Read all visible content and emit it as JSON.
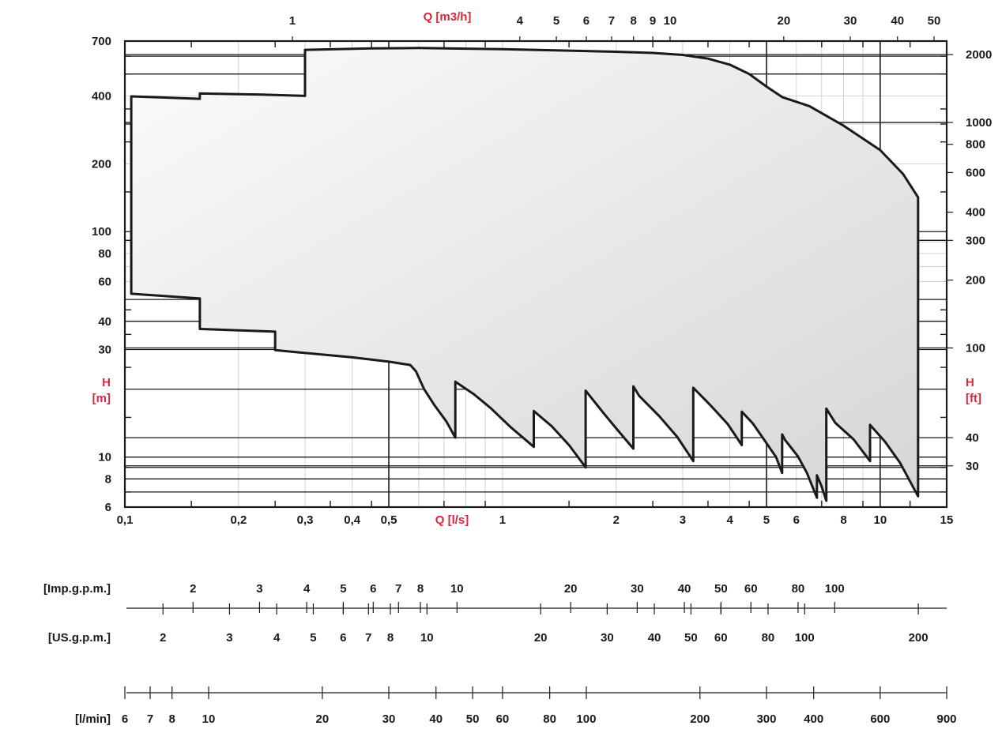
{
  "colors": {
    "axis_label": "#d9263a",
    "frame": "#1a1a1a",
    "envelope_fill_light": "#fbfbfb",
    "envelope_fill_dark": "#d6d6d6"
  },
  "chart_data": {
    "type": "area",
    "grid": true,
    "x_scale": "log",
    "y_scale": "log",
    "xlim": [
      0.1,
      15
    ],
    "ylim": [
      6,
      700
    ],
    "axis_labels": {
      "q_ls": "Q [l/s]",
      "q_m3h": "Q [m3/h]",
      "h_m_top": "H",
      "h_m_bottom": "[m]",
      "h_ft_top": "H",
      "h_ft_bottom": "[ft]"
    },
    "x_ticks_ls": [
      "0,1",
      "0,2",
      "0,3",
      "0,4",
      "0,5",
      "1",
      "2",
      "3",
      "4",
      "5",
      "6",
      "8",
      "10",
      "15"
    ],
    "x_ticks_m3h": [
      "1",
      "4",
      "5",
      "6",
      "7",
      "8",
      "9",
      "10",
      "20",
      "30",
      "40",
      "50"
    ],
    "y_ticks_m": [
      "700",
      "400",
      "200",
      "100",
      "80",
      "60",
      "40",
      "30",
      "10",
      "8",
      "6"
    ],
    "y_ticks_ft": [
      "2000",
      "1000",
      "800",
      "600",
      "400",
      "300",
      "200",
      "100",
      "40",
      "30"
    ],
    "secondary_scales": [
      {
        "label": "[Imp.g.p.m.]",
        "ticks": [
          "2",
          "3",
          "4",
          "5",
          "6",
          "7",
          "8",
          "10",
          "20",
          "30",
          "40",
          "50",
          "60",
          "80",
          "100"
        ]
      },
      {
        "label": "[US.g.p.m.]",
        "ticks": [
          "2",
          "3",
          "4",
          "5",
          "6",
          "7",
          "8",
          "10",
          "20",
          "30",
          "40",
          "50",
          "60",
          "80",
          "100",
          "200"
        ]
      },
      {
        "label": "[l/min]",
        "ticks": [
          "6",
          "7",
          "8",
          "10",
          "20",
          "30",
          "40",
          "50",
          "60",
          "80",
          "100",
          "200",
          "300",
          "400",
          "600",
          "900"
        ]
      }
    ],
    "series": [
      {
        "points": [
          [
            0.104,
            53
          ],
          [
            0.104,
            398
          ],
          [
            0.158,
            388
          ],
          [
            0.158,
            410
          ],
          [
            0.23,
            405
          ],
          [
            0.3,
            400
          ],
          [
            0.3,
            640
          ],
          [
            0.45,
            650
          ],
          [
            0.6,
            652
          ],
          [
            0.8,
            648
          ],
          [
            1.0,
            644
          ],
          [
            1.5,
            635
          ],
          [
            2.0,
            628
          ],
          [
            2.5,
            620
          ],
          [
            3.0,
            608
          ],
          [
            3.5,
            585
          ],
          [
            4.0,
            550
          ],
          [
            4.5,
            500
          ],
          [
            5.0,
            440
          ],
          [
            5.5,
            395
          ],
          [
            6.5,
            360
          ],
          [
            8.0,
            295
          ],
          [
            10.0,
            230
          ],
          [
            11.5,
            180
          ],
          [
            12.6,
            142
          ],
          [
            12.6,
            6.7
          ],
          [
            11.3,
            9.4
          ],
          [
            10.3,
            11.7
          ],
          [
            9.4,
            13.9
          ],
          [
            9.4,
            9.6
          ],
          [
            8.5,
            12.0
          ],
          [
            7.6,
            14.2
          ],
          [
            7.2,
            16.4
          ],
          [
            7.2,
            6.4
          ],
          [
            7.0,
            7.4
          ],
          [
            6.8,
            8.3
          ],
          [
            6.8,
            6.6
          ],
          [
            6.4,
            8.5
          ],
          [
            6.05,
            10.1
          ],
          [
            5.6,
            11.9
          ],
          [
            5.5,
            12.6
          ],
          [
            5.5,
            8.5
          ],
          [
            5.3,
            10.0
          ],
          [
            4.9,
            12.1
          ],
          [
            4.6,
            14.1
          ],
          [
            4.3,
            15.9
          ],
          [
            4.3,
            11.3
          ],
          [
            3.95,
            14.0
          ],
          [
            3.55,
            17.0
          ],
          [
            3.2,
            20.3
          ],
          [
            3.2,
            9.6
          ],
          [
            2.9,
            12.3
          ],
          [
            2.6,
            15.2
          ],
          [
            2.3,
            18.7
          ],
          [
            2.22,
            20.6
          ],
          [
            2.22,
            10.9
          ],
          [
            2.0,
            13.4
          ],
          [
            1.85,
            15.7
          ],
          [
            1.66,
            19.7
          ],
          [
            1.66,
            9.0
          ],
          [
            1.5,
            11.3
          ],
          [
            1.35,
            13.7
          ],
          [
            1.21,
            16.0
          ],
          [
            1.21,
            11.1
          ],
          [
            1.05,
            13.6
          ],
          [
            0.93,
            16.5
          ],
          [
            0.84,
            19.0
          ],
          [
            0.75,
            21.6
          ],
          [
            0.75,
            12.2
          ],
          [
            0.71,
            14.4
          ],
          [
            0.66,
            17.0
          ],
          [
            0.62,
            20.0
          ],
          [
            0.59,
            24.0
          ],
          [
            0.57,
            25.6
          ],
          [
            0.5,
            26.5
          ],
          [
            0.4,
            27.7
          ],
          [
            0.25,
            29.8
          ],
          [
            0.25,
            36.0
          ],
          [
            0.158,
            37.0
          ],
          [
            0.158,
            50.5
          ],
          [
            0.104,
            53
          ]
        ]
      }
    ]
  }
}
